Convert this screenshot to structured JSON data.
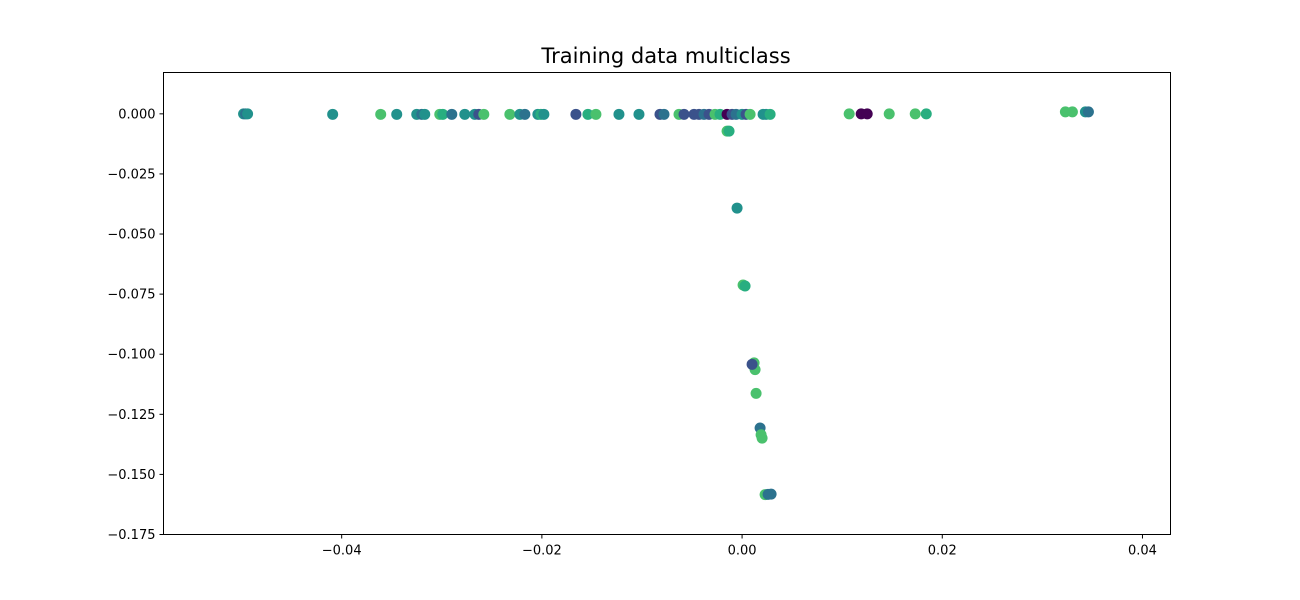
{
  "chart_data": {
    "type": "scatter",
    "title": "Training data multiclass",
    "xlabel": "",
    "ylabel": "",
    "xlim": [
      -0.0578,
      0.0428
    ],
    "ylim": [
      -0.175,
      0.0172
    ],
    "xticks": [
      -0.04,
      -0.02,
      0.0,
      0.02,
      0.04
    ],
    "xtick_labels": [
      "−0.04",
      "−0.02",
      "0.00",
      "0.02",
      "0.04"
    ],
    "yticks": [
      0.0,
      -0.025,
      -0.05,
      -0.075,
      -0.1,
      -0.125,
      -0.15,
      -0.175
    ],
    "ytick_labels": [
      "0.000",
      "−0.025",
      "−0.050",
      "−0.075",
      "−0.100",
      "−0.125",
      "−0.150",
      "−0.175"
    ],
    "grid": false,
    "legend": "none",
    "colormap": "viridis",
    "colors": {
      "purple": "#440154",
      "indigo": "#3b528b",
      "blue": "#2c728e",
      "teal": "#21918c",
      "green": "#28ae80",
      "light_green": "#4ac16d"
    },
    "points": [
      {
        "x": -0.0498,
        "y": 0.0,
        "c": "teal"
      },
      {
        "x": -0.0496,
        "y": 0.0,
        "c": "blue"
      },
      {
        "x": -0.0494,
        "y": 0.0,
        "c": "teal"
      },
      {
        "x": -0.0409,
        "y": -0.0002,
        "c": "teal"
      },
      {
        "x": -0.0361,
        "y": -0.0002,
        "c": "light_green"
      },
      {
        "x": -0.0345,
        "y": -0.0002,
        "c": "teal"
      },
      {
        "x": -0.0325,
        "y": -0.0002,
        "c": "teal"
      },
      {
        "x": -0.032,
        "y": -0.0002,
        "c": "blue"
      },
      {
        "x": -0.0317,
        "y": -0.0002,
        "c": "teal"
      },
      {
        "x": -0.0302,
        "y": -0.0002,
        "c": "light_green"
      },
      {
        "x": -0.0299,
        "y": -0.0002,
        "c": "green"
      },
      {
        "x": -0.029,
        "y": -0.0002,
        "c": "blue"
      },
      {
        "x": -0.0277,
        "y": -0.0002,
        "c": "teal"
      },
      {
        "x": -0.0267,
        "y": -0.0002,
        "c": "teal"
      },
      {
        "x": -0.0263,
        "y": -0.0002,
        "c": "indigo"
      },
      {
        "x": -0.0258,
        "y": -0.0002,
        "c": "light_green"
      },
      {
        "x": -0.0232,
        "y": -0.0002,
        "c": "light_green"
      },
      {
        "x": -0.0222,
        "y": -0.0002,
        "c": "teal"
      },
      {
        "x": -0.0217,
        "y": -0.0002,
        "c": "blue"
      },
      {
        "x": -0.0204,
        "y": -0.0002,
        "c": "teal"
      },
      {
        "x": -0.0201,
        "y": -0.0002,
        "c": "green"
      },
      {
        "x": -0.0198,
        "y": -0.0002,
        "c": "teal"
      },
      {
        "x": -0.0166,
        "y": -0.0002,
        "c": "indigo"
      },
      {
        "x": -0.0154,
        "y": -0.0002,
        "c": "green"
      },
      {
        "x": -0.0146,
        "y": -0.0002,
        "c": "light_green"
      },
      {
        "x": -0.0123,
        "y": -0.0002,
        "c": "teal"
      },
      {
        "x": -0.0103,
        "y": -0.0002,
        "c": "teal"
      },
      {
        "x": -0.0082,
        "y": -0.0002,
        "c": "indigo"
      },
      {
        "x": -0.0078,
        "y": -0.0002,
        "c": "blue"
      },
      {
        "x": -0.0063,
        "y": -0.0002,
        "c": "light_green"
      },
      {
        "x": -0.0058,
        "y": -0.0002,
        "c": "indigo"
      },
      {
        "x": -0.0048,
        "y": -0.0002,
        "c": "indigo"
      },
      {
        "x": -0.0043,
        "y": -0.0002,
        "c": "indigo"
      },
      {
        "x": -0.0038,
        "y": -0.0002,
        "c": "blue"
      },
      {
        "x": -0.0033,
        "y": -0.0002,
        "c": "indigo"
      },
      {
        "x": -0.0027,
        "y": -0.0002,
        "c": "light_green"
      },
      {
        "x": -0.0022,
        "y": -0.0002,
        "c": "green"
      },
      {
        "x": -0.0015,
        "y": -0.0002,
        "c": "purple"
      },
      {
        "x": -0.001,
        "y": -0.0002,
        "c": "indigo"
      },
      {
        "x": -0.0006,
        "y": -0.0002,
        "c": "blue"
      },
      {
        "x": 0.0,
        "y": -0.0002,
        "c": "teal"
      },
      {
        "x": 0.0004,
        "y": -0.0002,
        "c": "indigo"
      },
      {
        "x": 0.0008,
        "y": -0.0002,
        "c": "light_green"
      },
      {
        "x": 0.0021,
        "y": -0.0002,
        "c": "teal"
      },
      {
        "x": 0.0024,
        "y": -0.0002,
        "c": "teal"
      },
      {
        "x": 0.0028,
        "y": -0.0002,
        "c": "green"
      },
      {
        "x": -0.0015,
        "y": -0.0072,
        "c": "light_green"
      },
      {
        "x": -0.0013,
        "y": -0.0072,
        "c": "green"
      },
      {
        "x": -0.0005,
        "y": -0.0392,
        "c": "teal"
      },
      {
        "x": 0.0001,
        "y": -0.0712,
        "c": "light_green"
      },
      {
        "x": 0.0003,
        "y": -0.0716,
        "c": "green"
      },
      {
        "x": 0.0012,
        "y": -0.1036,
        "c": "light_green"
      },
      {
        "x": 0.0013,
        "y": -0.1064,
        "c": "light_green"
      },
      {
        "x": 0.001,
        "y": -0.1042,
        "c": "indigo"
      },
      {
        "x": 0.0014,
        "y": -0.1163,
        "c": "light_green"
      },
      {
        "x": 0.0018,
        "y": -0.1307,
        "c": "blue"
      },
      {
        "x": 0.0019,
        "y": -0.1335,
        "c": "light_green"
      },
      {
        "x": 0.002,
        "y": -0.1349,
        "c": "light_green"
      },
      {
        "x": 0.0023,
        "y": -0.1584,
        "c": "light_green"
      },
      {
        "x": 0.0026,
        "y": -0.1583,
        "c": "blue"
      },
      {
        "x": 0.0029,
        "y": -0.1582,
        "c": "blue"
      },
      {
        "x": 0.0107,
        "y": 0.0,
        "c": "light_green"
      },
      {
        "x": 0.0119,
        "y": 0.0,
        "c": "purple"
      },
      {
        "x": 0.0125,
        "y": 0.0,
        "c": "purple"
      },
      {
        "x": 0.0147,
        "y": 0.0,
        "c": "light_green"
      },
      {
        "x": 0.0173,
        "y": 0.0,
        "c": "light_green"
      },
      {
        "x": 0.0184,
        "y": 0.0,
        "c": "green"
      },
      {
        "x": 0.0323,
        "y": 0.0008,
        "c": "light_green"
      },
      {
        "x": 0.033,
        "y": 0.0008,
        "c": "light_green"
      },
      {
        "x": 0.0343,
        "y": 0.0008,
        "c": "teal"
      },
      {
        "x": 0.0346,
        "y": 0.0008,
        "c": "blue"
      }
    ]
  }
}
